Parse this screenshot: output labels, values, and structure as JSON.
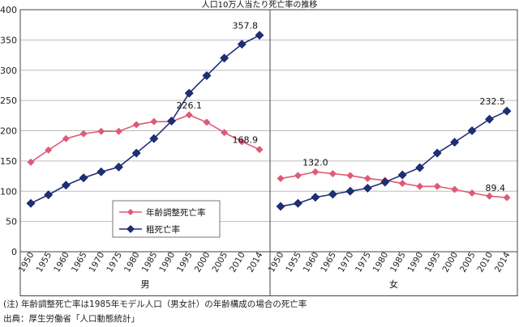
{
  "chart_data": {
    "type": "line",
    "title": "人口10万人当たり死亡率の推移",
    "x": [
      "1950",
      "1955",
      "1960",
      "1965",
      "1970",
      "1975",
      "1980",
      "1985",
      "1990",
      "1995",
      "2000",
      "2005",
      "2010",
      "2014"
    ],
    "ylim": [
      0,
      400
    ],
    "yticks": [
      "0",
      "50",
      "100",
      "150",
      "200",
      "250",
      "300",
      "350",
      "400"
    ],
    "grid": true,
    "colors": {
      "age_adjusted": "#de5a76",
      "crude": "#1e2f78"
    },
    "legend": [
      "年齢調整死亡率",
      "粗死亡率"
    ],
    "panels": [
      {
        "label": "男",
        "series": [
          {
            "name": "年齢調整死亡率",
            "values": [
              148,
              168,
              187,
              195,
              199,
              199,
              210,
              215,
              215,
              226.1,
              214,
              197,
              182,
              168.9
            ]
          },
          {
            "name": "粗死亡率",
            "values": [
              80,
              94,
              110,
              122,
              132,
              140,
              163,
              187,
              216,
              262,
              291,
              320,
              343,
              357.8
            ]
          }
        ],
        "annotations": [
          {
            "text": "357.8",
            "index": 13,
            "value": 357.8
          },
          {
            "text": "226.1",
            "index": 9,
            "value": 226.1
          },
          {
            "text": "168.9",
            "index": 13,
            "value": 168.9
          }
        ]
      },
      {
        "label": "女",
        "series": [
          {
            "name": "年齢調整死亡率",
            "values": [
              121,
              126,
              132.0,
              129,
              126,
              121,
              118,
              113,
              108,
              108,
              103,
              97,
              92,
              89.4
            ]
          },
          {
            "name": "粗死亡率",
            "values": [
              75,
              80,
              90,
              95,
              100,
              105,
              115,
              127,
              139,
              163,
              181,
              200,
              219,
              232.5
            ]
          }
        ],
        "annotations": [
          {
            "text": "132.0",
            "index": 2,
            "value": 132.0
          },
          {
            "text": "232.5",
            "index": 13,
            "value": 232.5
          },
          {
            "text": "89.4",
            "index": 13,
            "value": 89.4
          }
        ]
      }
    ]
  },
  "notes": {
    "note1": "(注) 年齢調整死亡率は1985年モデル人口（男女計）の年齢構成の場合の死亡率",
    "note2": "出典：厚生労働省「人口動態統計」"
  }
}
